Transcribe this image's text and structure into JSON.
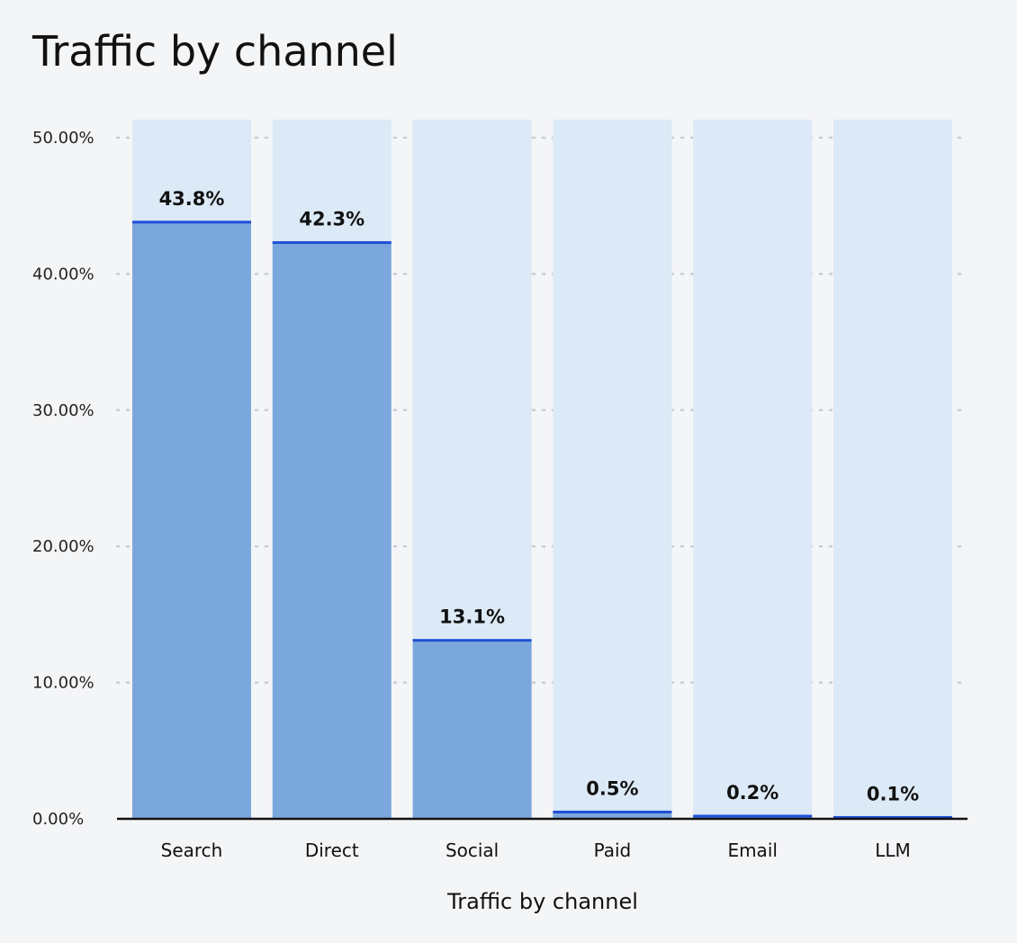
{
  "chart_data": {
    "type": "bar",
    "title": "Traffic by channel",
    "xlabel": "Traffic by channel",
    "ylabel": "",
    "categories": [
      "Search",
      "Direct",
      "Social",
      "Paid",
      "Email",
      "LLM"
    ],
    "values": [
      43.8,
      42.3,
      13.1,
      0.5,
      0.2,
      0.1
    ],
    "data_labels": [
      "43.8%",
      "42.3%",
      "13.1%",
      "0.5%",
      "0.2%",
      "0.1%"
    ],
    "ylim": [
      0,
      50
    ],
    "yticks": [
      0,
      10,
      20,
      30,
      40,
      50
    ],
    "ytick_labels": [
      "0.00%",
      "10.00%",
      "20.00%",
      "30.00%",
      "40.00%",
      "50.00%"
    ],
    "grid": true,
    "colors": {
      "bar_fill": "#7ba8dc",
      "bar_background": "#dce9f6",
      "bar_top_line": "#1f4fd6",
      "axis": "#111111",
      "grid": "#c8ccd2"
    }
  }
}
